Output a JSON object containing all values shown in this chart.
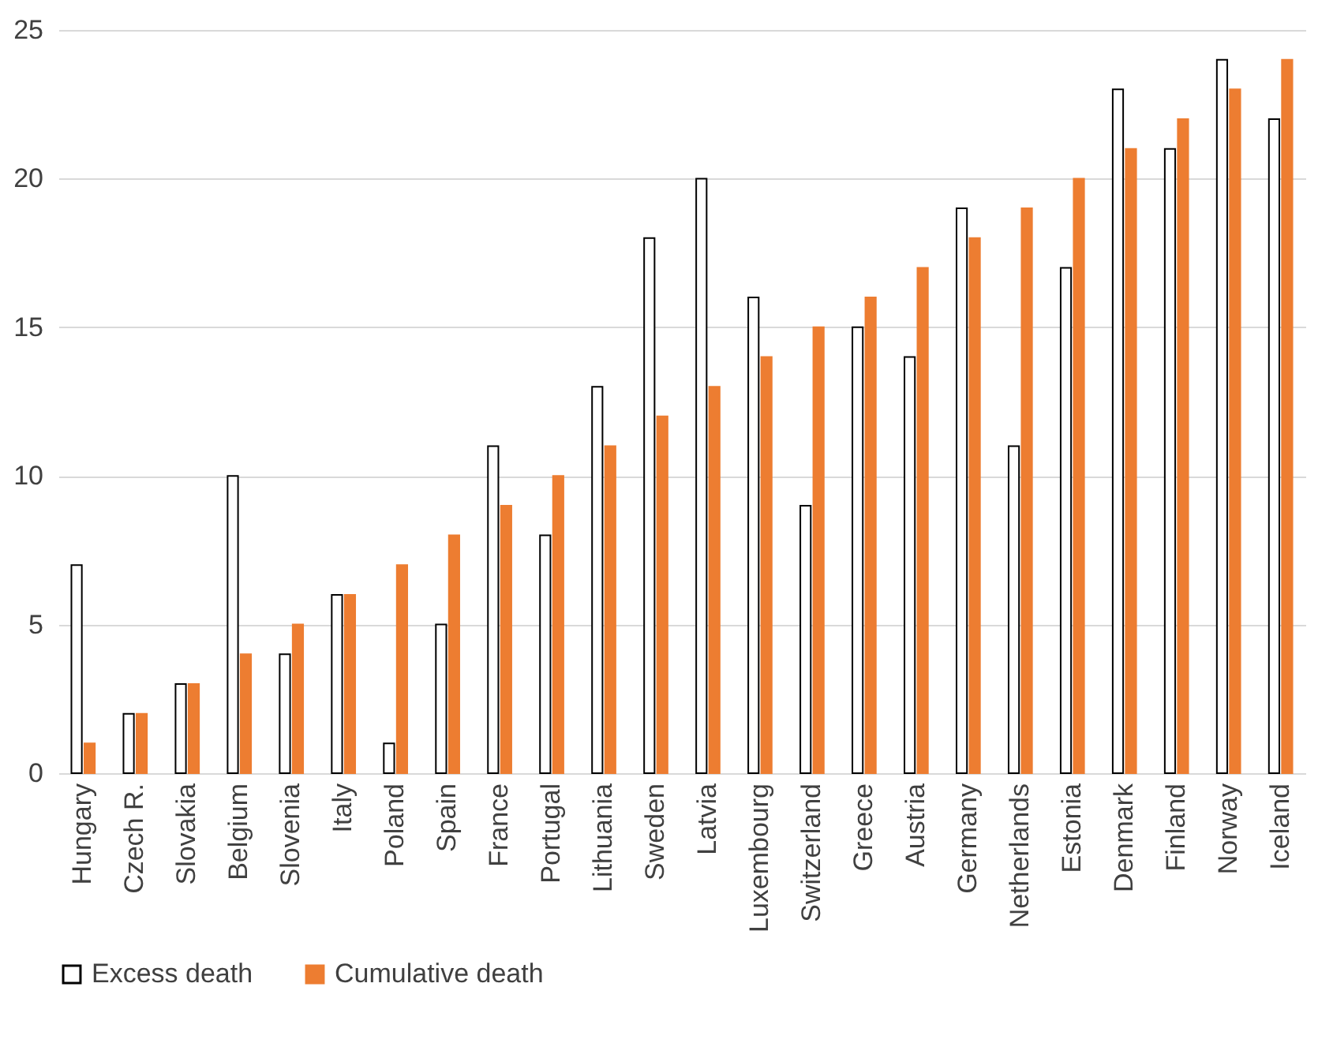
{
  "chart_data": {
    "type": "bar",
    "categories": [
      "Hungary",
      "Czech R.",
      "Slovakia",
      "Belgium",
      "Slovenia",
      "Italy",
      "Poland",
      "Spain",
      "France",
      "Portugal",
      "Lithuania",
      "Sweden",
      "Latvia",
      "Luxembourg",
      "Switzerland",
      "Greece",
      "Austria",
      "Germany",
      "Netherlands",
      "Estonia",
      "Denmark",
      "Finland",
      "Norway",
      "Iceland"
    ],
    "series": [
      {
        "name": "Excess death",
        "color": "#000000",
        "values": [
          7,
          2,
          3,
          10,
          4,
          6,
          1,
          5,
          11,
          8,
          13,
          18,
          20,
          16,
          9,
          15,
          14,
          19,
          11,
          17,
          23,
          21,
          24,
          22
        ]
      },
      {
        "name": "Cumulative death",
        "color": "#ed7d31",
        "values": [
          1,
          2,
          3,
          4,
          5,
          6,
          7,
          8,
          9,
          10,
          11,
          12,
          13,
          14,
          15,
          16,
          17,
          18,
          19,
          20,
          21,
          22,
          23,
          24
        ]
      }
    ],
    "ylim": [
      0,
      25
    ],
    "yticks": [
      0,
      5,
      10,
      15,
      20,
      25
    ],
    "grid": "y",
    "legend": "bottom"
  }
}
